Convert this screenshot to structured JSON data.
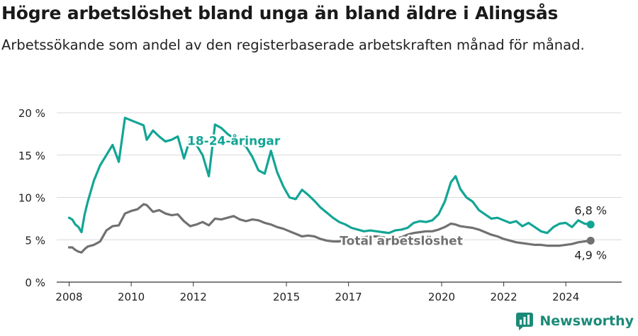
{
  "header": {
    "title": "Högre arbetslöshet bland unga än bland äldre i Alingsås",
    "subtitle": "Arbetssökande som andel av den registerbaserade arbetskraften månad för månad."
  },
  "brand": {
    "name": "Newsworthy",
    "icon": "newsworthy-logo-icon"
  },
  "colors": {
    "youth": "#12a595",
    "total": "#717171",
    "grid": "#d9d9d9",
    "axis": "#333333"
  },
  "chart_data": {
    "type": "line",
    "title": "Högre arbetslöshet bland unga än bland äldre i Alingsås",
    "subtitle": "Arbetssökande som andel av den registerbaserade arbetskraften månad för månad.",
    "x_unit": "år",
    "y_unit": "%",
    "xlim": [
      2007.6,
      2025.8
    ],
    "ylim": [
      0,
      20
    ],
    "yticks": [
      0,
      5,
      10,
      15,
      20
    ],
    "ytick_labels": [
      "0 %",
      "5 %",
      "10 %",
      "15 %",
      "20 %"
    ],
    "xticks": [
      2008,
      2010,
      2012,
      2015,
      2017,
      2020,
      2022,
      2024
    ],
    "xtick_labels": [
      "2008",
      "2010",
      "2012",
      "2015",
      "2017",
      "2020",
      "2022",
      "2024"
    ],
    "grid": true,
    "series": [
      {
        "name": "18-24-åringar",
        "color": "#12a595",
        "end_label": "6,8 %",
        "x": [
          2008.0,
          2008.1,
          2008.2,
          2008.3,
          2008.4,
          2008.5,
          2008.6,
          2008.8,
          2009.0,
          2009.2,
          2009.4,
          2009.6,
          2009.8,
          2010.0,
          2010.2,
          2010.4,
          2010.5,
          2010.7,
          2010.9,
          2011.1,
          2011.3,
          2011.5,
          2011.7,
          2011.9,
          2012.1,
          2012.3,
          2012.5,
          2012.7,
          2012.9,
          2013.1,
          2013.3,
          2013.5,
          2013.7,
          2013.9,
          2014.1,
          2014.3,
          2014.5,
          2014.7,
          2014.9,
          2015.1,
          2015.3,
          2015.5,
          2015.7,
          2015.9,
          2016.1,
          2016.3,
          2016.5,
          2016.7,
          2016.9,
          2017.1,
          2017.3,
          2017.5,
          2017.7,
          2017.9,
          2018.1,
          2018.3,
          2018.5,
          2018.7,
          2018.9,
          2019.1,
          2019.3,
          2019.5,
          2019.7,
          2019.9,
          2020.1,
          2020.3,
          2020.45,
          2020.6,
          2020.8,
          2021.0,
          2021.2,
          2021.4,
          2021.6,
          2021.8,
          2022.0,
          2022.2,
          2022.4,
          2022.6,
          2022.8,
          2023.0,
          2023.2,
          2023.4,
          2023.6,
          2023.8,
          2024.0,
          2024.2,
          2024.4,
          2024.6,
          2024.8
        ],
        "values": [
          7.6,
          7.4,
          6.8,
          6.5,
          5.9,
          8.0,
          9.5,
          12.0,
          13.8,
          15.0,
          16.2,
          14.2,
          19.4,
          19.1,
          18.8,
          18.5,
          16.8,
          17.9,
          17.2,
          16.6,
          16.8,
          17.2,
          14.6,
          16.9,
          16.2,
          15.0,
          12.5,
          18.6,
          18.2,
          17.5,
          17.0,
          16.5,
          16.0,
          14.8,
          13.2,
          12.8,
          15.5,
          13.0,
          11.3,
          10.0,
          9.8,
          10.9,
          10.3,
          9.6,
          8.8,
          8.2,
          7.6,
          7.1,
          6.8,
          6.4,
          6.2,
          6.0,
          6.1,
          6.0,
          5.9,
          5.8,
          6.1,
          6.2,
          6.4,
          7.0,
          7.2,
          7.1,
          7.3,
          8.0,
          9.5,
          11.8,
          12.5,
          11.0,
          10.0,
          9.5,
          8.5,
          8.0,
          7.5,
          7.6,
          7.3,
          7.0,
          7.2,
          6.6,
          7.0,
          6.5,
          6.0,
          5.8,
          6.5,
          6.9,
          7.0,
          6.5,
          7.3,
          6.9,
          6.8
        ]
      },
      {
        "name": "Total arbetslöshet",
        "color": "#717171",
        "end_label": "4,9 %",
        "x": [
          2008.0,
          2008.1,
          2008.2,
          2008.3,
          2008.4,
          2008.5,
          2008.6,
          2008.8,
          2009.0,
          2009.2,
          2009.4,
          2009.6,
          2009.8,
          2010.0,
          2010.2,
          2010.4,
          2010.5,
          2010.7,
          2010.9,
          2011.1,
          2011.3,
          2011.5,
          2011.7,
          2011.9,
          2012.1,
          2012.3,
          2012.5,
          2012.7,
          2012.9,
          2013.1,
          2013.3,
          2013.5,
          2013.7,
          2013.9,
          2014.1,
          2014.3,
          2014.5,
          2014.7,
          2014.9,
          2015.1,
          2015.3,
          2015.5,
          2015.7,
          2015.9,
          2016.1,
          2016.3,
          2016.5,
          2016.7,
          2016.9,
          2017.1,
          2017.3,
          2017.5,
          2017.7,
          2017.9,
          2018.1,
          2018.3,
          2018.5,
          2018.7,
          2018.9,
          2019.1,
          2019.3,
          2019.5,
          2019.7,
          2019.9,
          2020.1,
          2020.3,
          2020.45,
          2020.6,
          2020.8,
          2021.0,
          2021.2,
          2021.4,
          2021.6,
          2021.8,
          2022.0,
          2022.2,
          2022.4,
          2022.6,
          2022.8,
          2023.0,
          2023.2,
          2023.4,
          2023.6,
          2023.8,
          2024.0,
          2024.2,
          2024.4,
          2024.6,
          2024.8
        ],
        "values": [
          4.1,
          4.1,
          3.8,
          3.6,
          3.5,
          3.9,
          4.2,
          4.4,
          4.8,
          6.1,
          6.6,
          6.7,
          8.1,
          8.4,
          8.6,
          9.2,
          9.1,
          8.3,
          8.5,
          8.1,
          7.9,
          8.0,
          7.2,
          6.6,
          6.8,
          7.1,
          6.7,
          7.5,
          7.4,
          7.6,
          7.8,
          7.4,
          7.2,
          7.4,
          7.3,
          7.0,
          6.8,
          6.5,
          6.3,
          6.0,
          5.7,
          5.4,
          5.5,
          5.4,
          5.1,
          4.9,
          4.8,
          4.8,
          5.0,
          5.1,
          5.2,
          5.3,
          5.4,
          5.4,
          5.3,
          5.2,
          5.1,
          5.3,
          5.6,
          5.8,
          5.9,
          6.0,
          6.0,
          6.2,
          6.5,
          6.9,
          6.8,
          6.6,
          6.5,
          6.4,
          6.2,
          5.9,
          5.6,
          5.4,
          5.1,
          4.9,
          4.7,
          4.6,
          4.5,
          4.4,
          4.4,
          4.3,
          4.3,
          4.3,
          4.4,
          4.5,
          4.7,
          4.8,
          4.9
        ]
      }
    ]
  }
}
